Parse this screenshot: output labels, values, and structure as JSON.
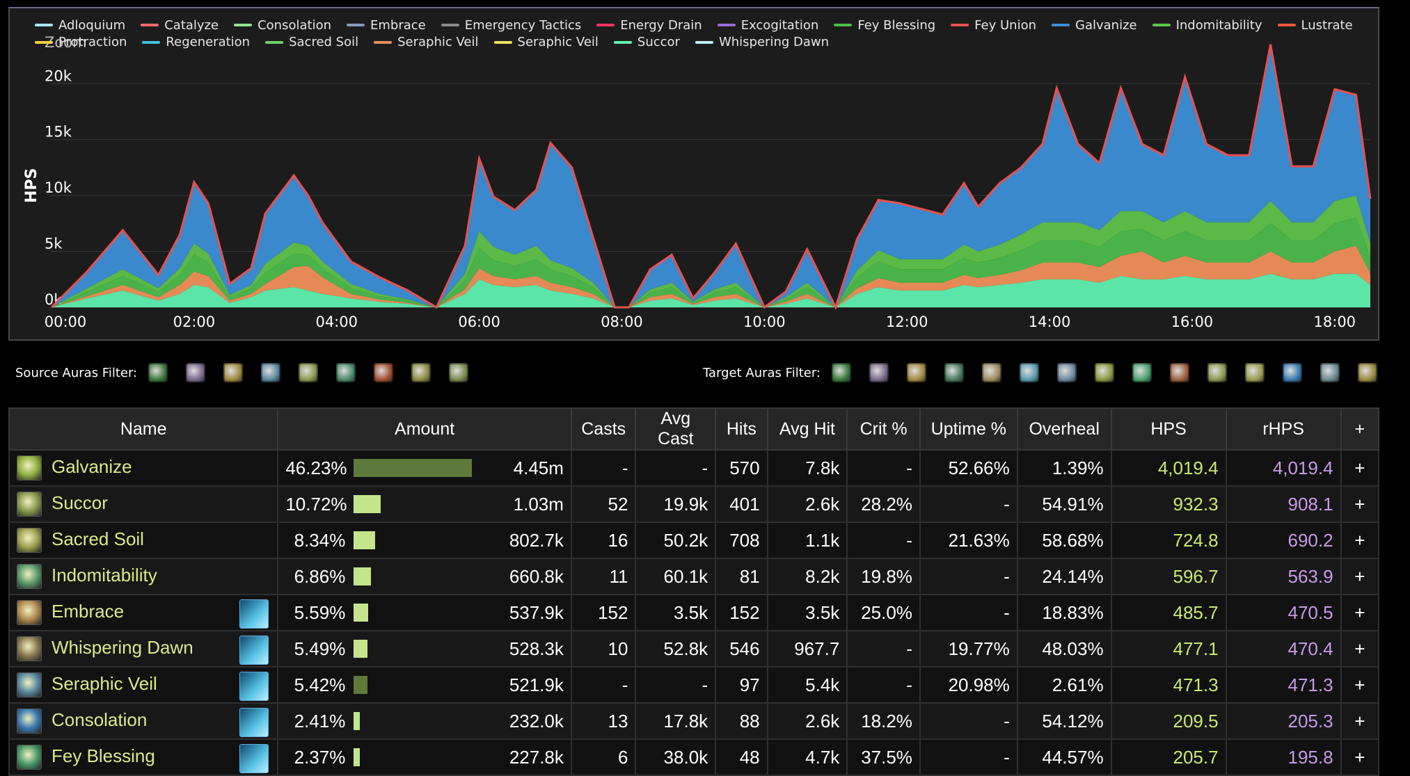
{
  "chart": {
    "ylabel": "HPS",
    "zoom_label": "Zoom",
    "y_ticks": [
      "0k",
      "5k",
      "10k",
      "15k",
      "20k"
    ],
    "x_ticks": [
      "00:00",
      "02:00",
      "04:00",
      "06:00",
      "08:00",
      "10:00",
      "12:00",
      "14:00",
      "16:00",
      "18:00"
    ]
  },
  "legend": [
    {
      "name": "Adloquium",
      "color": "#a8e6ff"
    },
    {
      "name": "Catalyze",
      "color": "#ff6b6b"
    },
    {
      "name": "Consolation",
      "color": "#8fe38f"
    },
    {
      "name": "Embrace",
      "color": "#8899bb"
    },
    {
      "name": "Emergency Tactics",
      "color": "#8a8a8a"
    },
    {
      "name": "Energy Drain",
      "color": "#ff3366"
    },
    {
      "name": "Excogitation",
      "color": "#9a6bd9"
    },
    {
      "name": "Fey Blessing",
      "color": "#4cbb4c"
    },
    {
      "name": "Fey Union",
      "color": "#e85050"
    },
    {
      "name": "Galvanize",
      "color": "#3b8fd6"
    },
    {
      "name": "Indomitability",
      "color": "#5fc24a"
    },
    {
      "name": "Lustrate",
      "color": "#f05a3a"
    },
    {
      "name": "Protraction",
      "color": "#f0d040"
    },
    {
      "name": "Regeneration",
      "color": "#40c0e0"
    },
    {
      "name": "Sacred Soil",
      "color": "#6ad06a"
    },
    {
      "name": "Seraphic Veil",
      "color": "#f0905a"
    },
    {
      "name": "Seraphic Veil",
      "color": "#f0e060"
    },
    {
      "name": "Succor",
      "color": "#60f0b0"
    },
    {
      "name": "Whispering Dawn",
      "color": "#c0f0ff"
    }
  ],
  "chart_data": {
    "type": "area",
    "stacked": true,
    "ylabel": "HPS",
    "ylim": [
      0,
      23000
    ],
    "x_range_minutes": [
      0,
      18.5
    ],
    "grid": true,
    "legend_position": "top",
    "x": [
      0,
      0.5,
      1,
      1.5,
      1.8,
      2,
      2.2,
      2.5,
      2.8,
      3,
      3.4,
      3.6,
      3.8,
      4.2,
      4.6,
      5,
      5.4,
      5.8,
      6,
      6.2,
      6.5,
      6.8,
      7,
      7.3,
      7.6,
      7.9,
      8.1,
      8.4,
      8.7,
      9,
      9.3,
      9.6,
      10,
      10.3,
      10.6,
      11,
      11.3,
      11.6,
      11.9,
      12.2,
      12.5,
      12.8,
      13,
      13.3,
      13.6,
      13.9,
      14.1,
      14.4,
      14.7,
      15,
      15.3,
      15.6,
      15.9,
      16.2,
      16.5,
      16.8,
      17.1,
      17.4,
      17.7,
      18,
      18.3,
      18.5
    ],
    "series": [
      {
        "name": "Galvanize",
        "values": [
          0,
          1500,
          3500,
          1200,
          3000,
          5500,
          4500,
          1000,
          1500,
          4500,
          6000,
          4500,
          3500,
          2000,
          1500,
          800,
          0,
          2500,
          6500,
          4500,
          4000,
          5000,
          10500,
          9000,
          4000,
          0,
          0,
          1800,
          2500,
          300,
          1500,
          3500,
          0,
          500,
          3000,
          0,
          2800,
          4500,
          5000,
          4500,
          4000,
          5500,
          4000,
          5500,
          6000,
          7000,
          12000,
          7000,
          6000,
          11000,
          6000,
          6000,
          12000,
          7000,
          6000,
          6000,
          14000,
          5000,
          5000,
          10000,
          9000,
          4000
        ]
      },
      {
        "name": "Succor",
        "values": [
          0,
          800,
          1500,
          600,
          1200,
          2000,
          1800,
          400,
          900,
          1500,
          1800,
          1500,
          1200,
          800,
          500,
          300,
          0,
          1200,
          2500,
          2000,
          1800,
          2000,
          1500,
          1200,
          800,
          0,
          0,
          600,
          800,
          200,
          600,
          800,
          0,
          300,
          800,
          0,
          1200,
          1800,
          1500,
          1500,
          1500,
          2000,
          1800,
          2000,
          2200,
          2500,
          2500,
          2500,
          2200,
          2800,
          2500,
          2500,
          2800,
          2500,
          2500,
          2500,
          3000,
          2500,
          2500,
          3000,
          3000,
          2000
        ]
      },
      {
        "name": "Sacred Soil",
        "values": [
          0,
          400,
          800,
          500,
          900,
          1500,
          1200,
          300,
          500,
          1000,
          1200,
          1000,
          800,
          500,
          300,
          200,
          0,
          800,
          1800,
          1400,
          1200,
          1500,
          1200,
          1000,
          600,
          0,
          0,
          400,
          600,
          100,
          400,
          600,
          0,
          200,
          600,
          0,
          1000,
          1500,
          1200,
          1200,
          1200,
          1500,
          1400,
          1500,
          1800,
          2000,
          2000,
          2000,
          1800,
          2200,
          2000,
          2000,
          2200,
          2000,
          2000,
          2000,
          2500,
          2000,
          2000,
          2500,
          2500,
          1500
        ]
      },
      {
        "name": "Seraphic Veil",
        "values": [
          0,
          200,
          500,
          300,
          800,
          1200,
          1000,
          200,
          300,
          600,
          1800,
          2200,
          1500,
          400,
          200,
          100,
          0,
          400,
          1000,
          800,
          700,
          800,
          700,
          600,
          400,
          0,
          0,
          300,
          400,
          100,
          300,
          400,
          0,
          200,
          400,
          0,
          500,
          800,
          700,
          700,
          700,
          900,
          800,
          900,
          1100,
          1500,
          1500,
          1500,
          1400,
          1800,
          2500,
          1500,
          1800,
          1500,
          1500,
          1500,
          2000,
          1500,
          1500,
          2000,
          2500,
          1000
        ]
      },
      {
        "name": "Indomitability",
        "values": [
          0,
          300,
          600,
          300,
          600,
          1000,
          800,
          200,
          300,
          800,
          1000,
          800,
          600,
          400,
          200,
          100,
          0,
          600,
          1500,
          1200,
          1000,
          1200,
          800,
          700,
          400,
          0,
          0,
          300,
          400,
          100,
          300,
          400,
          0,
          200,
          400,
          0,
          600,
          1000,
          900,
          900,
          900,
          1200,
          1000,
          1200,
          1400,
          1600,
          1600,
          1600,
          1500,
          1800,
          1600,
          1600,
          1800,
          1600,
          1600,
          1600,
          2000,
          1600,
          1600,
          2000,
          2000,
          1200
        ]
      }
    ]
  },
  "filters": {
    "source_label": "Source Auras Filter:",
    "target_label": "Target Auras Filter:",
    "source_icons": [
      "#3a7a3a",
      "#7a6a8a",
      "#a08a40",
      "#5a8aa0",
      "#8a9a50",
      "#4a8a6a",
      "#a05030",
      "#8a8a40",
      "#7a8a50"
    ],
    "target_icons": [
      "#3a7a3a",
      "#7a6a8a",
      "#a08a40",
      "#4a7a5a",
      "#a08a60",
      "#5a9ab0",
      "#6a8aa0",
      "#8a9a40",
      "#4aa070",
      "#a06040",
      "#8a9a50",
      "#9a9a50",
      "#3a7ab0",
      "#6a8a90",
      "#9a8a40"
    ]
  },
  "table": {
    "headers": {
      "name": "Name",
      "amount": "Amount",
      "casts": "Casts",
      "avg_cast": "Avg Cast",
      "hits": "Hits",
      "avg_hit": "Avg Hit",
      "crit": "Crit %",
      "uptime": "Uptime %",
      "overheal": "Overheal",
      "hps": "HPS",
      "rhps": "rHPS",
      "plus": "+"
    },
    "rows": [
      {
        "name": "Galvanize",
        "icon": "#8fb040",
        "pet": false,
        "pct": "46.23%",
        "bar": 0.4623,
        "dim": true,
        "amount": "4.45m",
        "casts": "-",
        "avg_cast": "-",
        "hits": "570",
        "avg_hit": "7.8k",
        "crit": "-",
        "uptime": "52.66%",
        "overheal": "1.39%",
        "hps": "4,019.4",
        "rhps": "4,019.4"
      },
      {
        "name": "Succor",
        "icon": "#8a9a50",
        "pet": false,
        "pct": "10.72%",
        "bar": 0.1072,
        "dim": false,
        "amount": "1.03m",
        "casts": "52",
        "avg_cast": "19.9k",
        "hits": "401",
        "avg_hit": "2.6k",
        "crit": "28.2%",
        "uptime": "-",
        "overheal": "54.91%",
        "hps": "932.3",
        "rhps": "908.1"
      },
      {
        "name": "Sacred Soil",
        "icon": "#a0a050",
        "pet": false,
        "pct": "8.34%",
        "bar": 0.0834,
        "dim": false,
        "amount": "802.7k",
        "casts": "16",
        "avg_cast": "50.2k",
        "hits": "708",
        "avg_hit": "1.1k",
        "crit": "-",
        "uptime": "21.63%",
        "overheal": "58.68%",
        "hps": "724.8",
        "rhps": "690.2"
      },
      {
        "name": "Indomitability",
        "icon": "#5a9a6a",
        "pet": false,
        "pct": "6.86%",
        "bar": 0.0686,
        "dim": false,
        "amount": "660.8k",
        "casts": "11",
        "avg_cast": "60.1k",
        "hits": "81",
        "avg_hit": "8.2k",
        "crit": "19.8%",
        "uptime": "-",
        "overheal": "24.14%",
        "hps": "596.7",
        "rhps": "563.9"
      },
      {
        "name": "Embrace",
        "icon": "#b08a50",
        "pet": true,
        "pct": "5.59%",
        "bar": 0.0559,
        "dim": false,
        "amount": "537.9k",
        "casts": "152",
        "avg_cast": "3.5k",
        "hits": "152",
        "avg_hit": "3.5k",
        "crit": "25.0%",
        "uptime": "-",
        "overheal": "18.83%",
        "hps": "485.7",
        "rhps": "470.5"
      },
      {
        "name": "Whispering Dawn",
        "icon": "#8a7a50",
        "pet": true,
        "pct": "5.49%",
        "bar": 0.0549,
        "dim": false,
        "amount": "528.3k",
        "casts": "10",
        "avg_cast": "52.8k",
        "hits": "546",
        "avg_hit": "967.7",
        "crit": "-",
        "uptime": "19.77%",
        "overheal": "48.03%",
        "hps": "477.1",
        "rhps": "470.4"
      },
      {
        "name": "Seraphic Veil",
        "icon": "#5a8aa0",
        "pet": true,
        "pct": "5.42%",
        "bar": 0.0542,
        "dim": true,
        "amount": "521.9k",
        "casts": "-",
        "avg_cast": "-",
        "hits": "97",
        "avg_hit": "5.4k",
        "crit": "-",
        "uptime": "20.98%",
        "overheal": "2.61%",
        "hps": "471.3",
        "rhps": "471.3"
      },
      {
        "name": "Consolation",
        "icon": "#3a7ab0",
        "pet": true,
        "pct": "2.41%",
        "bar": 0.0241,
        "dim": false,
        "amount": "232.0k",
        "casts": "13",
        "avg_cast": "17.8k",
        "hits": "88",
        "avg_hit": "2.6k",
        "crit": "18.2%",
        "uptime": "-",
        "overheal": "54.12%",
        "hps": "209.5",
        "rhps": "205.3"
      },
      {
        "name": "Fey Blessing",
        "icon": "#4a9a6a",
        "pet": true,
        "pct": "2.37%",
        "bar": 0.0237,
        "dim": false,
        "amount": "227.8k",
        "casts": "6",
        "avg_cast": "38.0k",
        "hits": "48",
        "avg_hit": "4.7k",
        "crit": "37.5%",
        "uptime": "-",
        "overheal": "44.57%",
        "hps": "205.7",
        "rhps": "195.8"
      }
    ]
  }
}
